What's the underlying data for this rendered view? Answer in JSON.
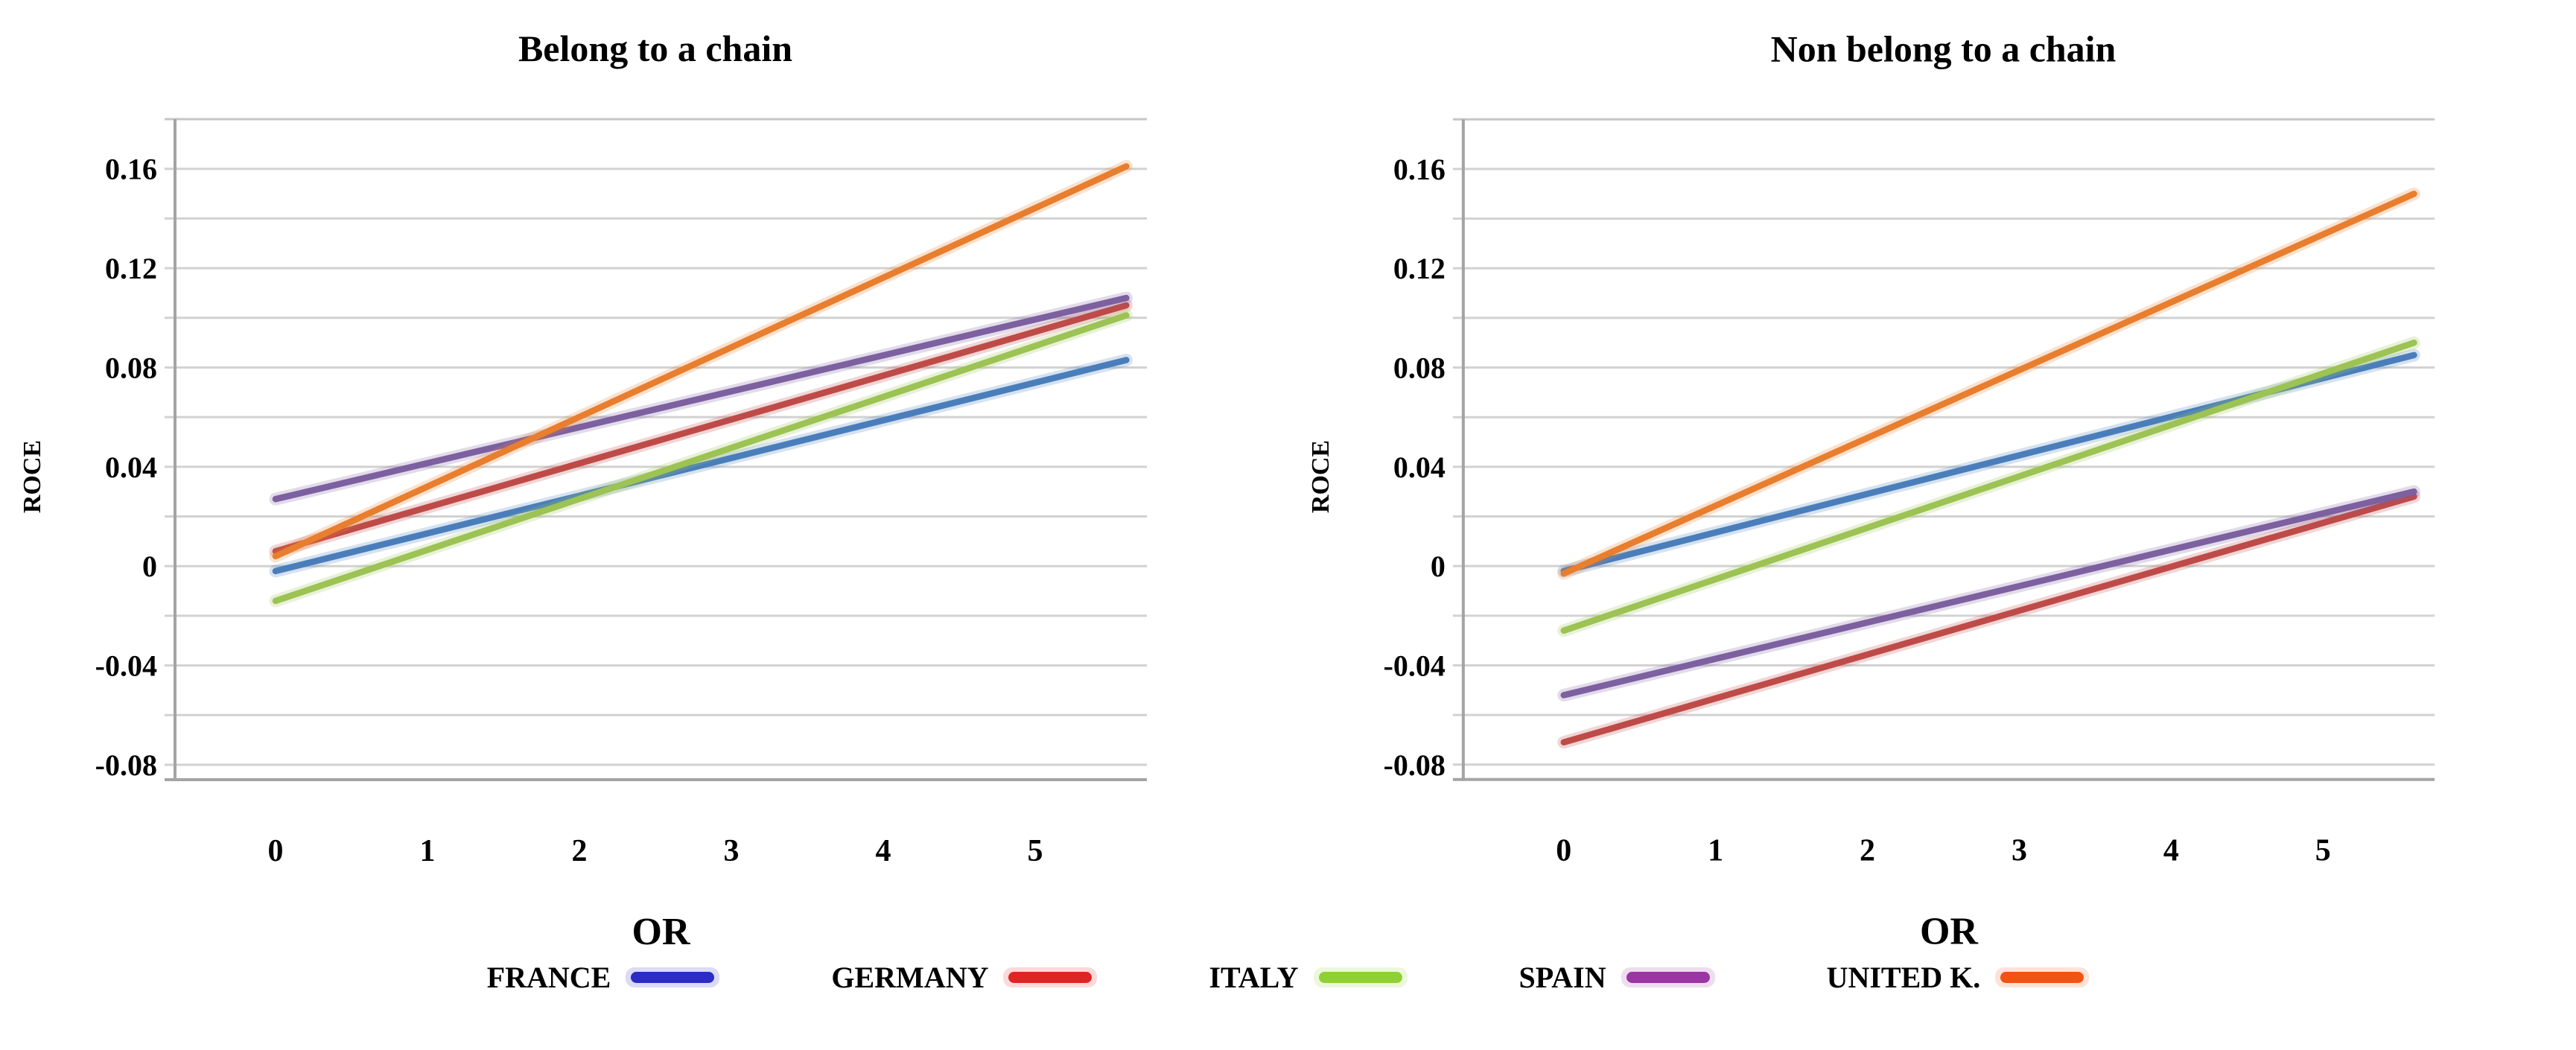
{
  "figure": {
    "background": "#ffffff",
    "text_color": "#000000",
    "grid_color": "#d2d2d2",
    "top_border_color": "#c6c6c6",
    "axis_color": "#a4a4a4"
  },
  "legend": {
    "items": [
      {
        "label": "FRANCE",
        "color": "#2b2bc8"
      },
      {
        "label": "GERMANY",
        "color": "#e02423"
      },
      {
        "label": "ITALY",
        "color": "#8fd132"
      },
      {
        "label": "SPAIN",
        "color": "#9a35a3"
      },
      {
        "label": "UNITED K.",
        "color": "#f25212"
      }
    ]
  },
  "chart_data": [
    {
      "type": "line",
      "title": "Belong to a chain",
      "xlabel": "OR",
      "ylabel": "ROCE",
      "x_tick_labels": [
        "0",
        "1",
        "2",
        "3",
        "4",
        "5"
      ],
      "y_tick_labels": [
        "0.16",
        "0.12",
        "0.08",
        "0.04",
        "0",
        "-0.04",
        "-0.08"
      ],
      "ylim": [
        -0.086,
        0.18
      ],
      "xlim": [
        -0.66,
        6.35
      ],
      "grid_step": 0.02,
      "grid": "horizontal",
      "legend_position": "bottom-shared",
      "x": [
        0,
        5.6
      ],
      "series": [
        {
          "name": "FRANCE",
          "color": "#4a7ebb",
          "values": [
            -0.002,
            0.083
          ]
        },
        {
          "name": "GERMANY",
          "color": "#be4b48",
          "values": [
            0.006,
            0.105
          ]
        },
        {
          "name": "ITALY",
          "color": "#9cc353",
          "values": [
            -0.014,
            0.101
          ]
        },
        {
          "name": "SPAIN",
          "color": "#7d60a0",
          "values": [
            0.027,
            0.108
          ]
        },
        {
          "name": "UNITED K.",
          "color": "#e87e2e",
          "values": [
            0.004,
            0.161
          ]
        }
      ]
    },
    {
      "type": "line",
      "title": "Non belong to a chain",
      "xlabel": "OR",
      "ylabel": "ROCE",
      "x_tick_labels": [
        "0",
        "1",
        "2",
        "3",
        "4",
        "5"
      ],
      "y_tick_labels": [
        "0.16",
        "0.12",
        "0.08",
        "0.04",
        "0",
        "-0.04",
        "-0.08"
      ],
      "ylim": [
        -0.086,
        0.18
      ],
      "xlim": [
        -0.66,
        6.35
      ],
      "grid_step": 0.02,
      "grid": "horizontal",
      "legend_position": "bottom-shared",
      "x": [
        0,
        5.6
      ],
      "series": [
        {
          "name": "FRANCE",
          "color": "#4a7ebb",
          "values": [
            -0.002,
            0.085
          ]
        },
        {
          "name": "GERMANY",
          "color": "#be4b48",
          "values": [
            -0.071,
            0.028
          ]
        },
        {
          "name": "ITALY",
          "color": "#9cc353",
          "values": [
            -0.026,
            0.09
          ]
        },
        {
          "name": "SPAIN",
          "color": "#7d60a0",
          "values": [
            -0.052,
            0.03
          ]
        },
        {
          "name": "UNITED K.",
          "color": "#e87e2e",
          "values": [
            -0.003,
            0.15
          ]
        }
      ]
    }
  ]
}
